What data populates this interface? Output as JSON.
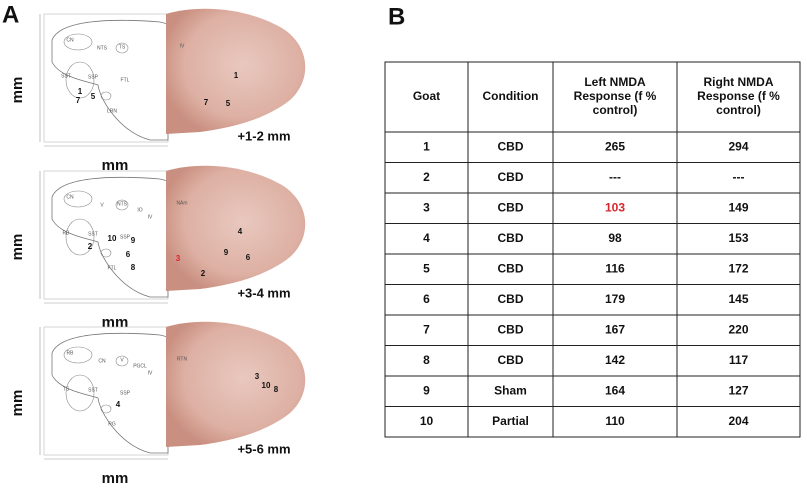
{
  "panel_a": {
    "label": "A",
    "sections": [
      {
        "depth": "+1-2 mm",
        "y_axis": "mm",
        "x_axis": "mm",
        "markers": [
          "1",
          "7",
          "5",
          "1",
          "7",
          "5"
        ],
        "atlas_labels": [
          "CN",
          "NTS",
          "TS",
          "SST",
          "SSP",
          "FTL",
          "LRN",
          "IV"
        ]
      },
      {
        "depth": "+3-4 mm",
        "y_axis": "mm",
        "x_axis": "mm",
        "markers": [
          "2",
          "10",
          "9",
          "6",
          "8",
          "3",
          "4",
          "9",
          "6",
          "2"
        ],
        "atlas_labels": [
          "CN",
          "V",
          "NTS",
          "RB",
          "SST",
          "SSP",
          "FTL",
          "NAm",
          "IO",
          "IV"
        ]
      },
      {
        "depth": "+5-6 mm",
        "y_axis": "mm",
        "x_axis": "mm",
        "markers": [
          "4",
          "3",
          "10",
          "8"
        ],
        "atlas_labels": [
          "RB",
          "CN",
          "V",
          "TS",
          "SST",
          "SSP",
          "RG",
          "RTN",
          "PGCL",
          "IV"
        ]
      }
    ]
  },
  "panel_b": {
    "label": "B",
    "table": {
      "header": [
        "Goat",
        "Condition",
        "Left NMDA Response (f % control)",
        "Right NMDA Response (f % control)"
      ],
      "rows": [
        [
          "1",
          "CBD",
          "265",
          "294"
        ],
        [
          "2",
          "CBD",
          "---",
          "---"
        ],
        [
          "3",
          "CBD",
          "103",
          "149"
        ],
        [
          "4",
          "CBD",
          "98",
          "153"
        ],
        [
          "5",
          "CBD",
          "116",
          "172"
        ],
        [
          "6",
          "CBD",
          "179",
          "145"
        ],
        [
          "7",
          "CBD",
          "167",
          "220"
        ],
        [
          "8",
          "CBD",
          "142",
          "117"
        ],
        [
          "9",
          "Sham",
          "164",
          "127"
        ],
        [
          "10",
          "Partial",
          "110",
          "204"
        ]
      ],
      "highlight": {
        "row": 2,
        "col": 2,
        "color": "#d9262b"
      }
    }
  }
}
